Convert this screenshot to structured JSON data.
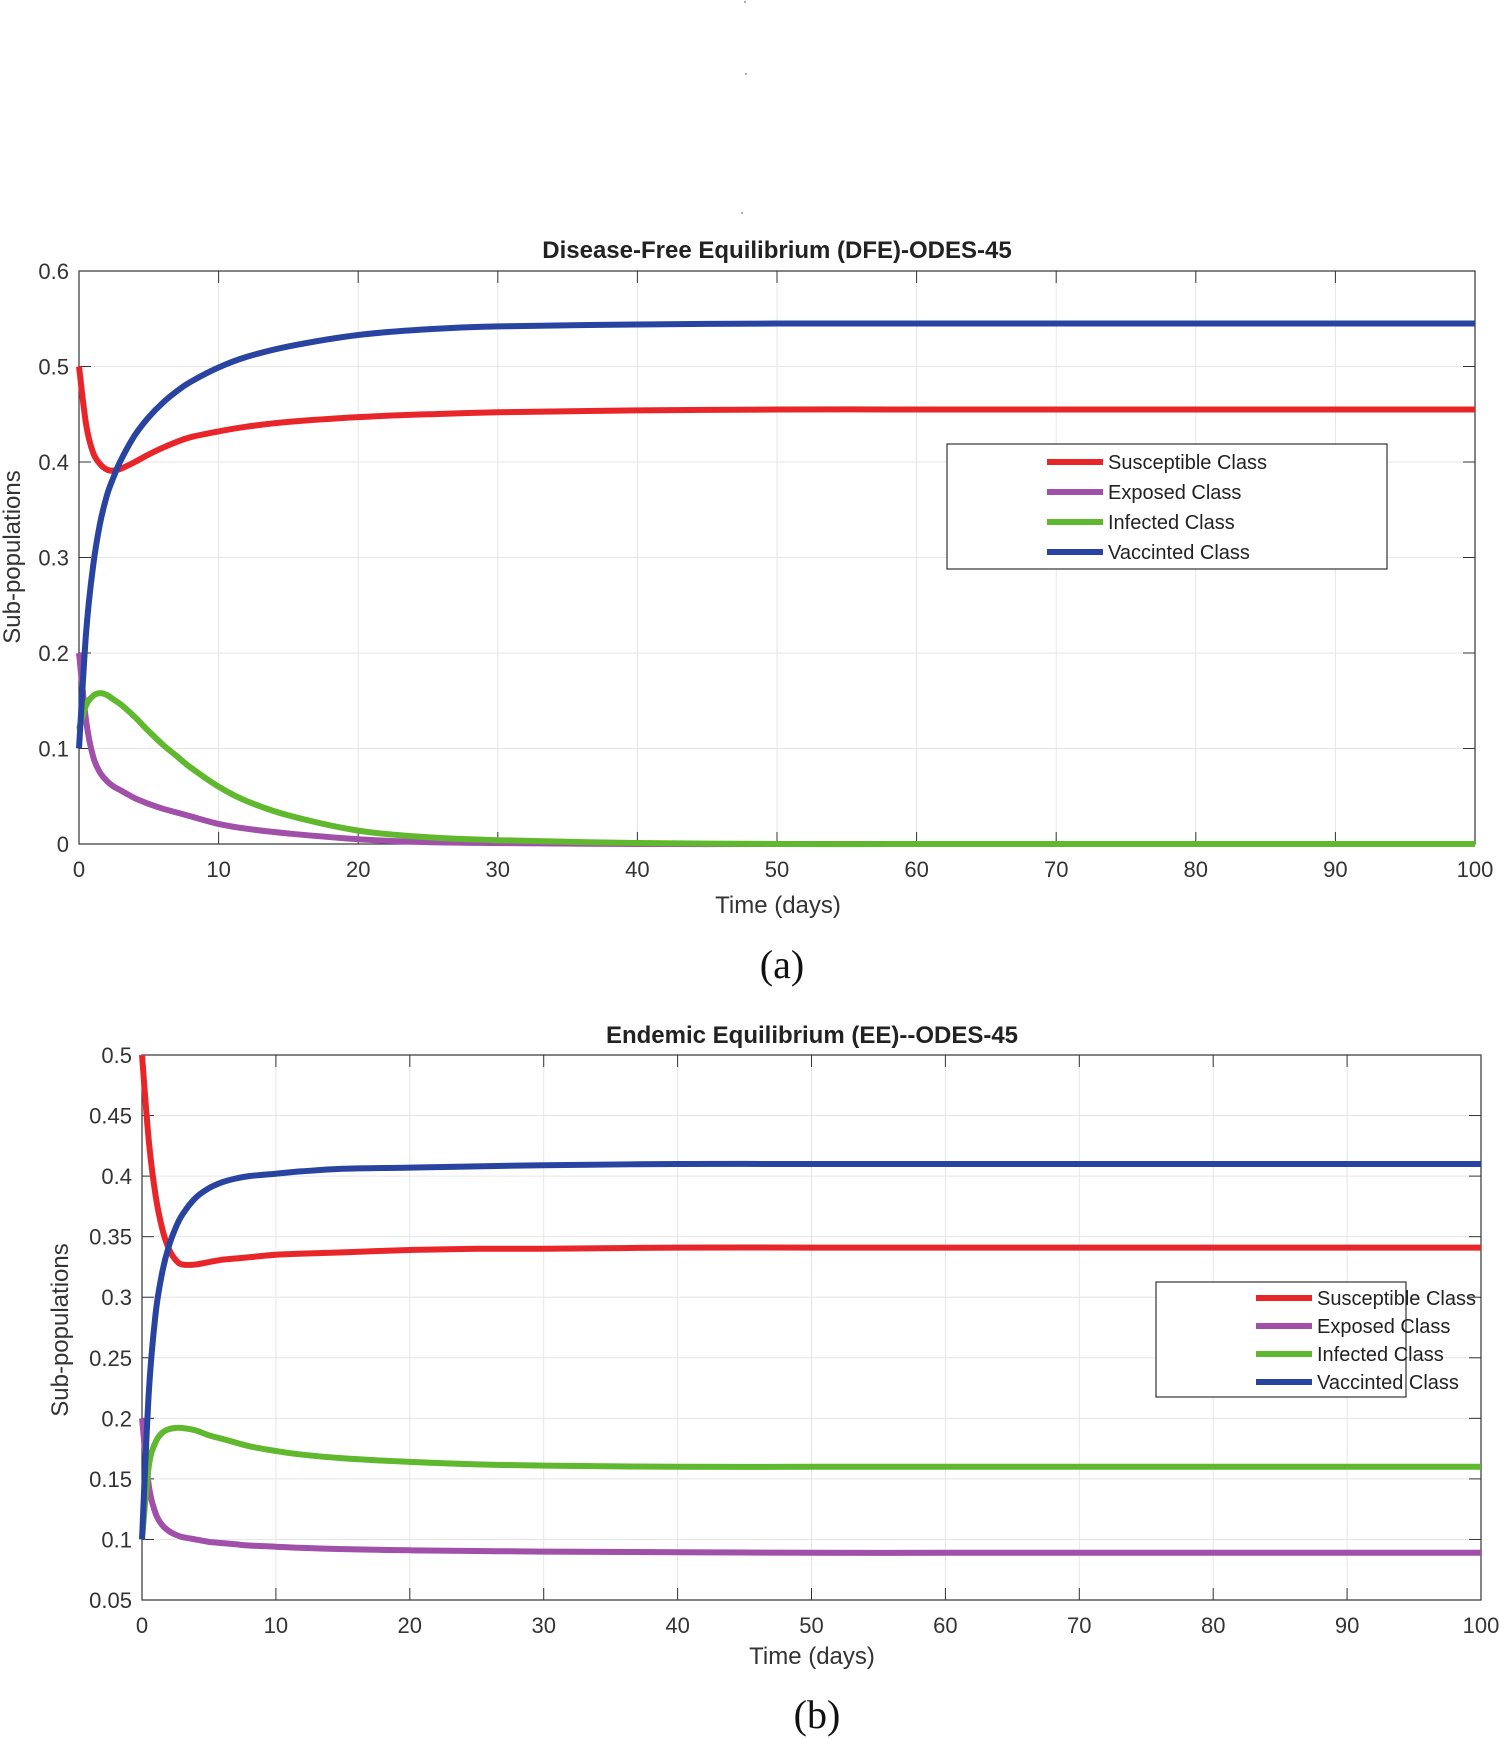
{
  "chart_data": [
    {
      "type": "line",
      "title": "Disease-Free Equilibrium (DFE)-ODES-45",
      "xlabel": "Time (days)",
      "ylabel": "Sub-populations",
      "panel_label": "(a)",
      "xlim": [
        0,
        100
      ],
      "ylim": [
        0,
        0.6
      ],
      "grid": true,
      "legend": "center-right",
      "xticks": [
        "0",
        "10",
        "20",
        "30",
        "40",
        "50",
        "60",
        "70",
        "80",
        "90",
        "100"
      ],
      "yticks": [
        "0",
        "0.1",
        "0.2",
        "0.3",
        "0.4",
        "0.5",
        "0.6"
      ],
      "x": [
        0,
        0.5,
        1,
        1.5,
        2,
        2.5,
        3,
        4,
        5,
        6,
        7,
        8,
        10,
        12,
        15,
        20,
        25,
        30,
        40,
        50,
        60,
        70,
        80,
        90,
        100
      ],
      "series": [
        {
          "name": "Susceptible Class",
          "color": "#e8262a",
          "values": [
            0.5,
            0.44,
            0.41,
            0.398,
            0.392,
            0.391,
            0.393,
            0.4,
            0.408,
            0.415,
            0.421,
            0.426,
            0.432,
            0.437,
            0.442,
            0.447,
            0.45,
            0.452,
            0.454,
            0.455,
            0.455,
            0.455,
            0.455,
            0.455,
            0.455
          ]
        },
        {
          "name": "Exposed Class",
          "color": "#a050a8",
          "values": [
            0.2,
            0.13,
            0.092,
            0.075,
            0.066,
            0.06,
            0.056,
            0.048,
            0.042,
            0.037,
            0.033,
            0.029,
            0.021,
            0.016,
            0.011,
            0.005,
            0.002,
            0.001,
            0.0,
            0.0,
            0.0,
            0.0,
            0.0,
            0.0,
            0.0
          ]
        },
        {
          "name": "Infected Class",
          "color": "#5fb82e",
          "values": [
            0.12,
            0.145,
            0.155,
            0.158,
            0.156,
            0.151,
            0.146,
            0.133,
            0.118,
            0.104,
            0.092,
            0.08,
            0.06,
            0.045,
            0.03,
            0.014,
            0.007,
            0.004,
            0.001,
            0.0,
            0.0,
            0.0,
            0.0,
            0.0,
            0.0
          ]
        },
        {
          "name": "Vaccinted Class",
          "color": "#2844a0",
          "values": [
            0.1,
            0.22,
            0.29,
            0.335,
            0.365,
            0.385,
            0.402,
            0.428,
            0.447,
            0.462,
            0.474,
            0.484,
            0.499,
            0.51,
            0.521,
            0.533,
            0.539,
            0.542,
            0.544,
            0.545,
            0.545,
            0.545,
            0.545,
            0.545,
            0.545
          ]
        }
      ]
    },
    {
      "type": "line",
      "title": "Endemic Equilibrium (EE)--ODES-45",
      "xlabel": "Time (days)",
      "ylabel": "Sub-populations",
      "panel_label": "(b)",
      "xlim": [
        0,
        100
      ],
      "ylim": [
        0.05,
        0.5
      ],
      "grid": true,
      "legend": "center-right",
      "xticks": [
        "0",
        "10",
        "20",
        "30",
        "40",
        "50",
        "60",
        "70",
        "80",
        "90",
        "100"
      ],
      "yticks": [
        "0.05",
        "0.1",
        "0.15",
        "0.2",
        "0.25",
        "0.3",
        "0.35",
        "0.4",
        "0.45",
        "0.5"
      ],
      "x": [
        0,
        0.5,
        1,
        1.5,
        2,
        2.5,
        3,
        4,
        5,
        6,
        7,
        8,
        10,
        12,
        15,
        20,
        25,
        30,
        40,
        50,
        60,
        70,
        80,
        90,
        100
      ],
      "series": [
        {
          "name": "Susceptible Class",
          "color": "#e8262a",
          "values": [
            0.5,
            0.43,
            0.385,
            0.357,
            0.34,
            0.331,
            0.327,
            0.327,
            0.329,
            0.331,
            0.332,
            0.333,
            0.335,
            0.336,
            0.337,
            0.339,
            0.34,
            0.34,
            0.341,
            0.341,
            0.341,
            0.341,
            0.341,
            0.341,
            0.341
          ]
        },
        {
          "name": "Exposed Class",
          "color": "#a050a8",
          "values": [
            0.2,
            0.145,
            0.122,
            0.112,
            0.107,
            0.104,
            0.102,
            0.1,
            0.098,
            0.097,
            0.096,
            0.095,
            0.094,
            0.093,
            0.092,
            0.091,
            0.0905,
            0.09,
            0.0895,
            0.089,
            0.089,
            0.089,
            0.089,
            0.089,
            0.089
          ]
        },
        {
          "name": "Infected Class",
          "color": "#5fb82e",
          "values": [
            0.1,
            0.16,
            0.18,
            0.188,
            0.191,
            0.192,
            0.192,
            0.19,
            0.186,
            0.183,
            0.18,
            0.177,
            0.173,
            0.17,
            0.167,
            0.164,
            0.162,
            0.161,
            0.16,
            0.16,
            0.16,
            0.16,
            0.16,
            0.16,
            0.16
          ]
        },
        {
          "name": "Vaccinted Class",
          "color": "#2844a0",
          "values": [
            0.1,
            0.22,
            0.285,
            0.32,
            0.342,
            0.357,
            0.368,
            0.382,
            0.39,
            0.395,
            0.398,
            0.4,
            0.402,
            0.404,
            0.406,
            0.407,
            0.408,
            0.409,
            0.41,
            0.41,
            0.41,
            0.41,
            0.41,
            0.41,
            0.41
          ]
        }
      ]
    }
  ]
}
